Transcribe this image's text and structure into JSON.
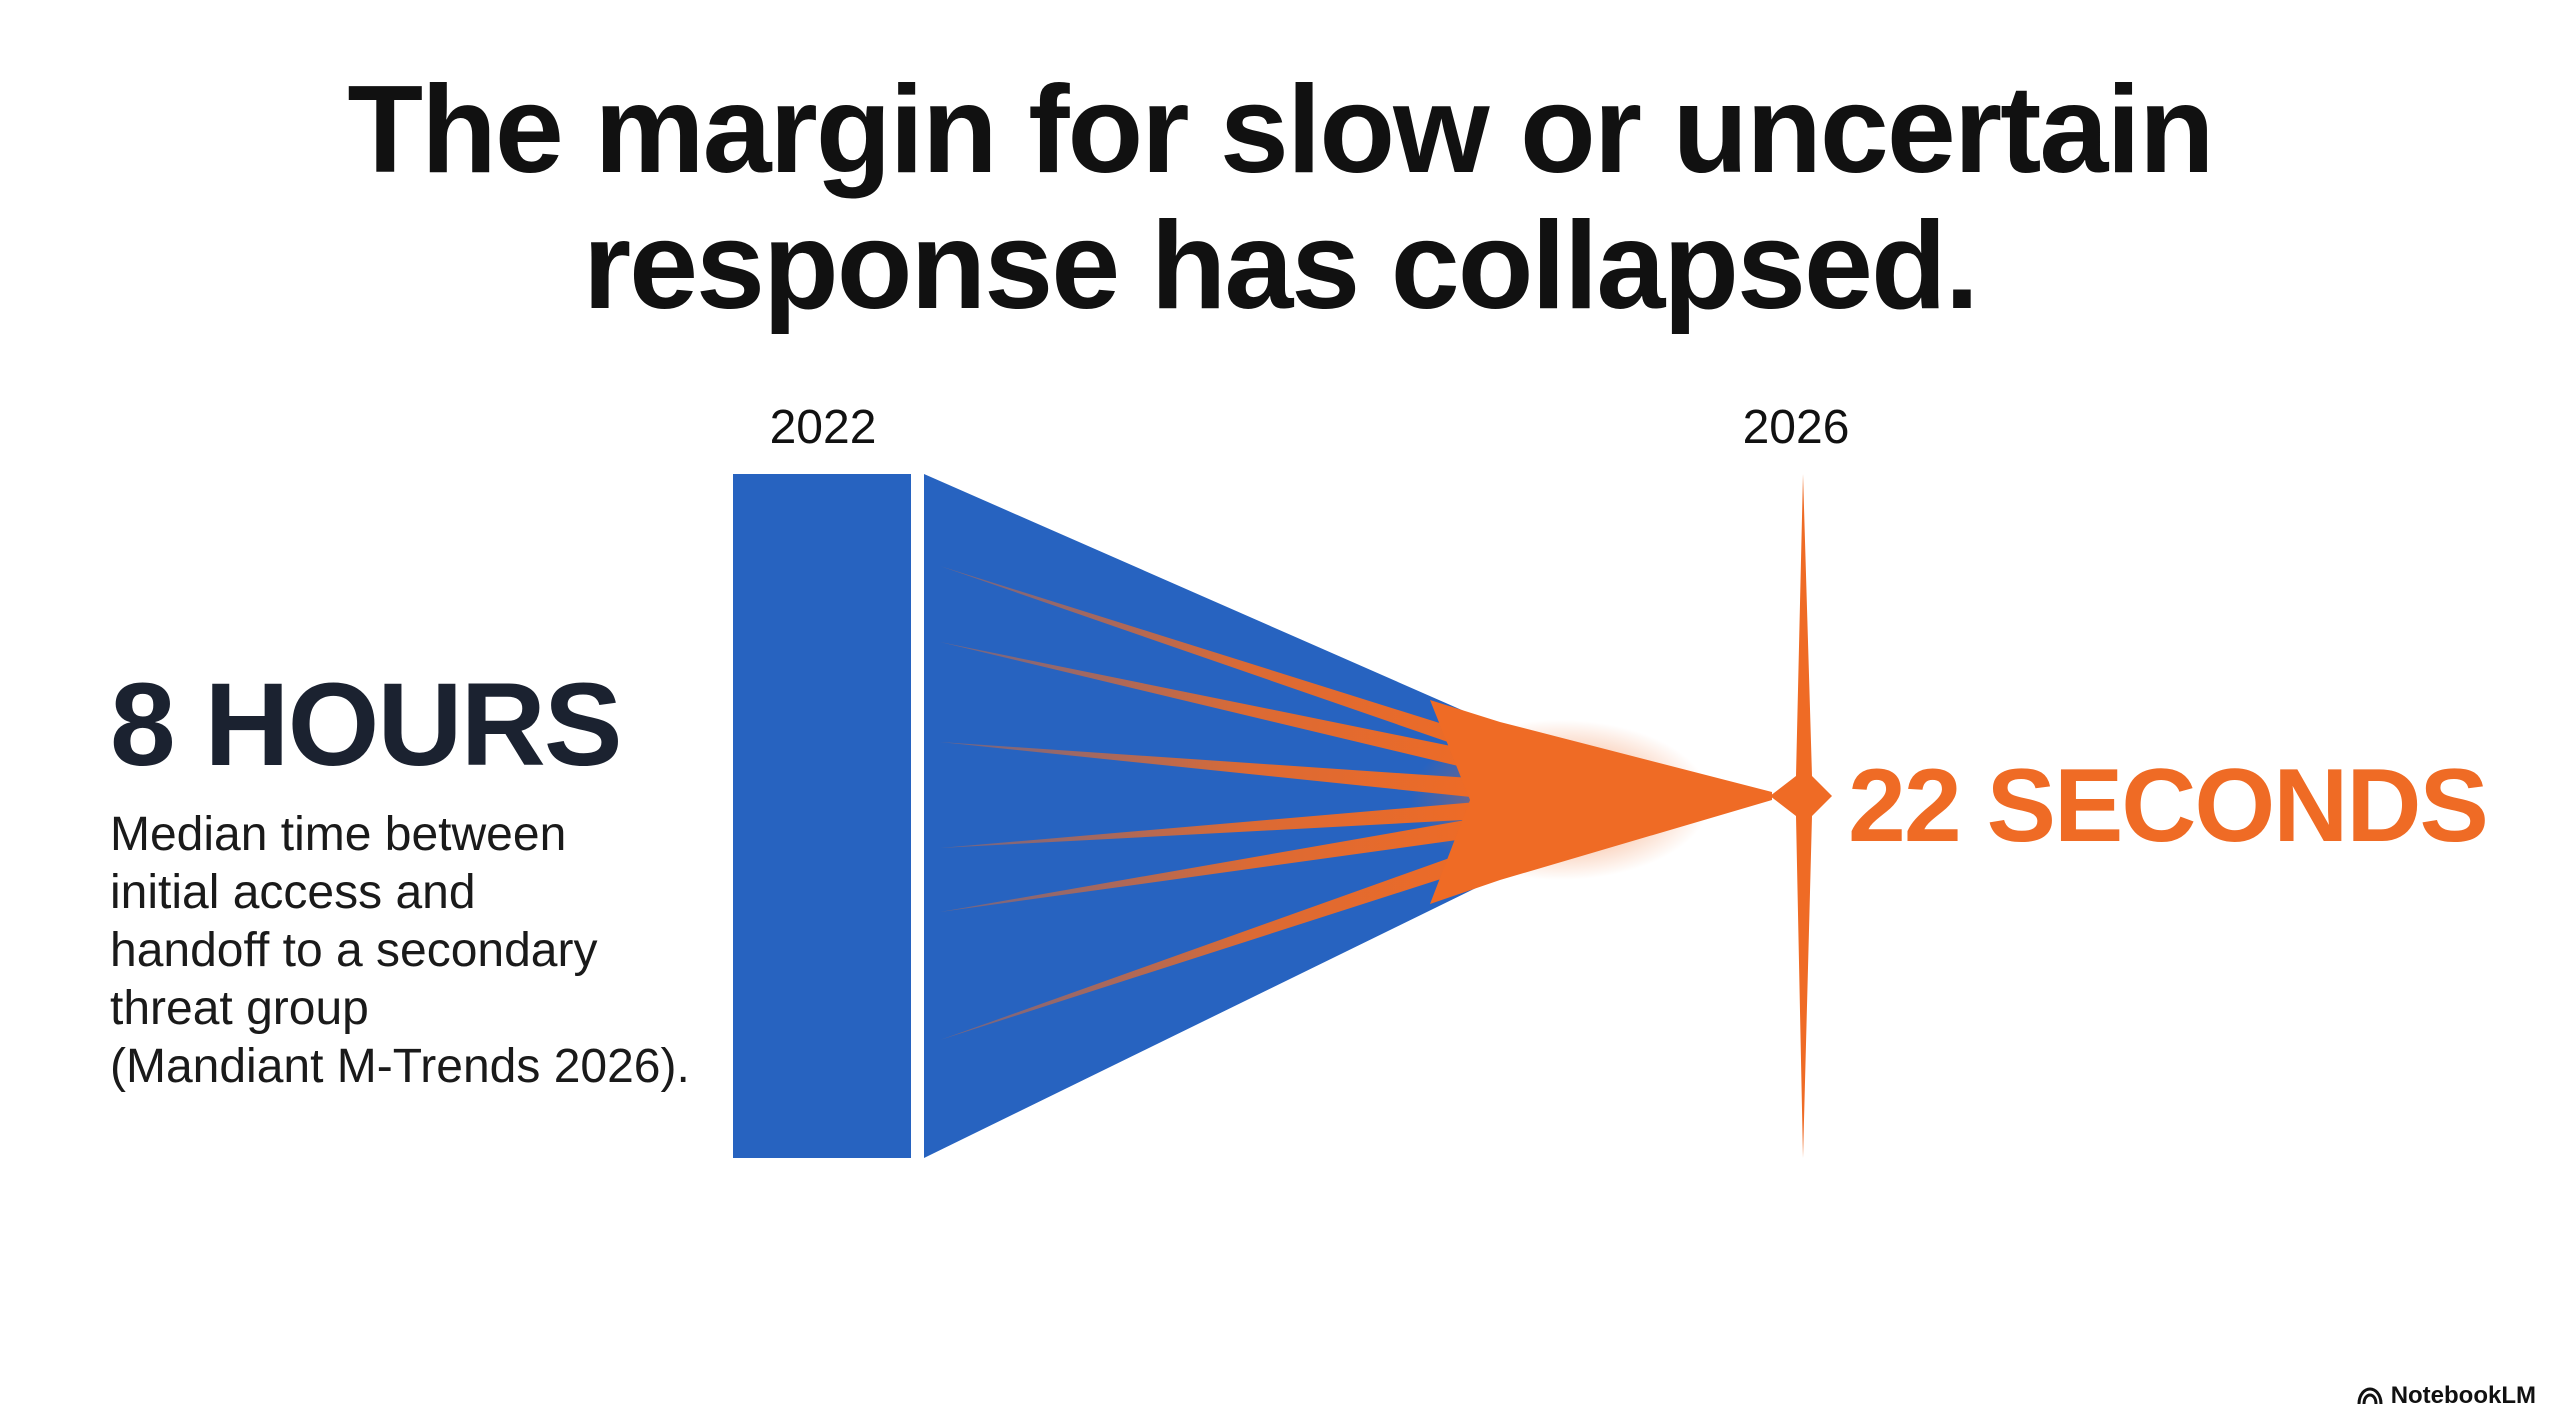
{
  "title": {
    "line1": "The margin for slow or uncertain",
    "line2": "response has collapsed."
  },
  "timeline": {
    "start_year": "2022",
    "end_year": "2026"
  },
  "left": {
    "stat": "8 HOURS",
    "description_lines": [
      "Median time between",
      "initial access and",
      "handoff to a secondary",
      "threat group",
      "(Mandiant M-Trends 2026)."
    ]
  },
  "right": {
    "stat": "22 SECONDS"
  },
  "brand": {
    "label": "NotebookLM",
    "icon": "notebooklm-logo-icon"
  },
  "colors": {
    "blue": "#2763c0",
    "orange": "#ef6b25",
    "text_dark": "#111111",
    "stat_dark": "#1b2230"
  }
}
